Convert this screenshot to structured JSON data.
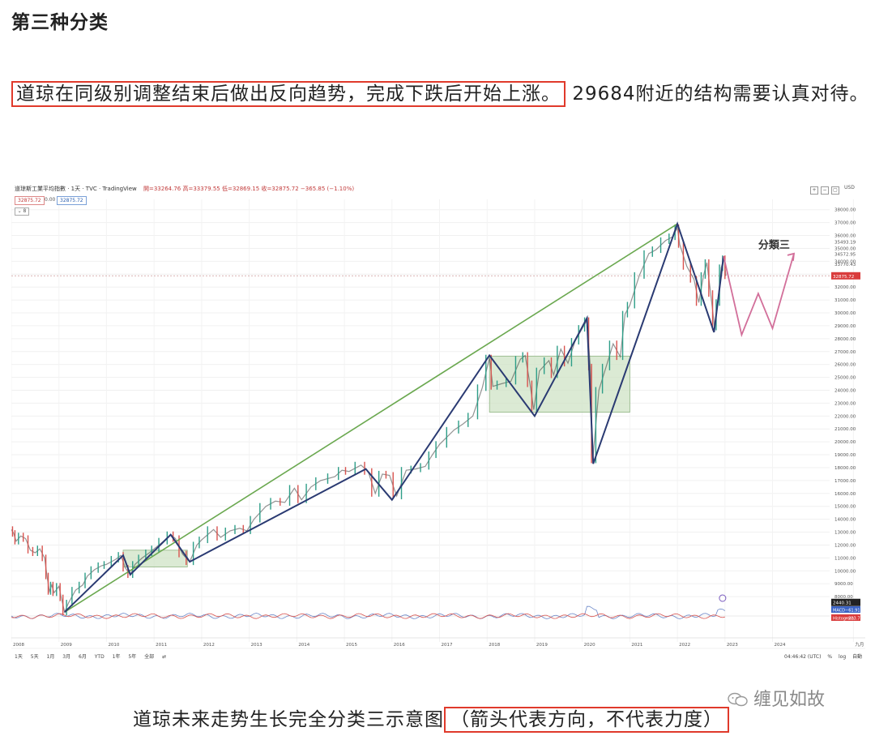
{
  "heading": "第三种分类",
  "paragraph": {
    "highlighted": "道琼在同级别调整结束后做出反向趋势，完成下跌后开始上涨。",
    "rest": "29684附近的结构需要认真对待。"
  },
  "tv": {
    "title": "道琼斯工業平均指數 · 1天 · TVC · TradingView",
    "ohlc": "開=33264.76 高=33379.55 低=32869.15 收=32875.72 −365.85 (−1.10%)",
    "box1": "32875.72",
    "box2": "0.00",
    "box3": "32875.72",
    "currency": "USD",
    "toggle": "⌄ 8",
    "win_buttons": [
      "+",
      "−",
      "▢"
    ]
  },
  "colors": {
    "candle_up": "#2e9e88",
    "candle_down": "#d9534f",
    "structure_line": "#2a3a72",
    "trend_line": "#6aa84f",
    "projection": "#d26f9a",
    "box_fill": "#cfe3c6",
    "box_stroke": "#8fb482",
    "label_bg": "#d93c3c"
  },
  "chart_data": {
    "type": "line",
    "title": "",
    "annotation": "分類三",
    "price_labels": {
      "current": "32875.72",
      "values": [
        "34572.95",
        "33770.43",
        "35493.19"
      ],
      "indicator": "2440.31",
      "macd": "−61.91",
      "histogram": "−323.77",
      "macd_tag": "MACD",
      "histogram_tag": "Histogram"
    },
    "y_ticks": [
      8000,
      9000,
      10000,
      11000,
      12000,
      13000,
      14000,
      15000,
      16000,
      17000,
      18000,
      19000,
      20000,
      21000,
      22000,
      23000,
      24000,
      25000,
      26000,
      27000,
      28000,
      29000,
      30000,
      31000,
      32000,
      33000,
      34000,
      35000,
      36000,
      37000,
      38000
    ],
    "x_ticks": [
      "2008",
      "2009",
      "2010",
      "2011",
      "2012",
      "2013",
      "2014",
      "2015",
      "2016",
      "2017",
      "2018",
      "2019",
      "2020",
      "2021",
      "2022",
      "2023",
      "2024",
      "九月"
    ],
    "ylim": [
      7000,
      38800
    ],
    "price_series": [
      [
        2008.0,
        13200
      ],
      [
        2008.05,
        12900
      ],
      [
        2008.1,
        12300
      ],
      [
        2008.2,
        12700
      ],
      [
        2008.3,
        12500
      ],
      [
        2008.4,
        11600
      ],
      [
        2008.5,
        11400
      ],
      [
        2008.6,
        11700
      ],
      [
        2008.7,
        11000
      ],
      [
        2008.75,
        9600
      ],
      [
        2008.8,
        8400
      ],
      [
        2008.85,
        8900
      ],
      [
        2008.9,
        8300
      ],
      [
        2009.0,
        8800
      ],
      [
        2009.05,
        7900
      ],
      [
        2009.12,
        6800
      ],
      [
        2009.2,
        7500
      ],
      [
        2009.35,
        8500
      ],
      [
        2009.5,
        8900
      ],
      [
        2009.6,
        9600
      ],
      [
        2009.75,
        10100
      ],
      [
        2009.9,
        10400
      ],
      [
        2010.0,
        10500
      ],
      [
        2010.2,
        10900
      ],
      [
        2010.3,
        11200
      ],
      [
        2010.4,
        10200
      ],
      [
        2010.5,
        9700
      ],
      [
        2010.6,
        10500
      ],
      [
        2010.75,
        11000
      ],
      [
        2010.9,
        11400
      ],
      [
        2011.0,
        11700
      ],
      [
        2011.2,
        12300
      ],
      [
        2011.35,
        12800
      ],
      [
        2011.45,
        12500
      ],
      [
        2011.6,
        11300
      ],
      [
        2011.75,
        10700
      ],
      [
        2011.9,
        12000
      ],
      [
        2012.0,
        12400
      ],
      [
        2012.25,
        13200
      ],
      [
        2012.4,
        12600
      ],
      [
        2012.6,
        13100
      ],
      [
        2012.8,
        13300
      ],
      [
        2012.95,
        13100
      ],
      [
        2013.1,
        14000
      ],
      [
        2013.35,
        15000
      ],
      [
        2013.55,
        15400
      ],
      [
        2013.75,
        15300
      ],
      [
        2013.95,
        16400
      ],
      [
        2014.1,
        15500
      ],
      [
        2014.3,
        16500
      ],
      [
        2014.5,
        17000
      ],
      [
        2014.8,
        17300
      ],
      [
        2014.95,
        17800
      ],
      [
        2015.1,
        17700
      ],
      [
        2015.35,
        18200
      ],
      [
        2015.5,
        17700
      ],
      [
        2015.65,
        16000
      ],
      [
        2015.8,
        17500
      ],
      [
        2015.95,
        17400
      ],
      [
        2016.1,
        15800
      ],
      [
        2016.3,
        17800
      ],
      [
        2016.5,
        17900
      ],
      [
        2016.7,
        18100
      ],
      [
        2016.85,
        19000
      ],
      [
        2017.0,
        19800
      ],
      [
        2017.3,
        20900
      ],
      [
        2017.5,
        21400
      ],
      [
        2017.7,
        22000
      ],
      [
        2017.9,
        24200
      ],
      [
        2018.05,
        26500
      ],
      [
        2018.12,
        24300
      ],
      [
        2018.3,
        24500
      ],
      [
        2018.5,
        24700
      ],
      [
        2018.7,
        26400
      ],
      [
        2018.8,
        26700
      ],
      [
        2018.9,
        24500
      ],
      [
        2018.98,
        22500
      ],
      [
        2019.1,
        25500
      ],
      [
        2019.3,
        26300
      ],
      [
        2019.4,
        25200
      ],
      [
        2019.55,
        27200
      ],
      [
        2019.7,
        26100
      ],
      [
        2019.85,
        27800
      ],
      [
        2020.0,
        28800
      ],
      [
        2020.1,
        29400
      ],
      [
        2020.17,
        25800
      ],
      [
        2020.22,
        18600
      ],
      [
        2020.35,
        24000
      ],
      [
        2020.5,
        25800
      ],
      [
        2020.65,
        27600
      ],
      [
        2020.8,
        26600
      ],
      [
        2020.9,
        29900
      ],
      [
        2021.0,
        30600
      ],
      [
        2021.2,
        32900
      ],
      [
        2021.4,
        34600
      ],
      [
        2021.55,
        34900
      ],
      [
        2021.75,
        35600
      ],
      [
        2021.9,
        35900
      ],
      [
        2022.0,
        36600
      ],
      [
        2022.05,
        35300
      ],
      [
        2022.2,
        33600
      ],
      [
        2022.35,
        32600
      ],
      [
        2022.45,
        30800
      ],
      [
        2022.55,
        32900
      ],
      [
        2022.62,
        33900
      ],
      [
        2022.7,
        31500
      ],
      [
        2022.78,
        28900
      ],
      [
        2022.85,
        30800
      ],
      [
        2022.92,
        33500
      ],
      [
        2022.98,
        34200
      ],
      [
        2023.02,
        32875
      ]
    ],
    "structure_line": [
      [
        2009.12,
        6800
      ],
      [
        2010.35,
        11200
      ],
      [
        2010.5,
        9700
      ],
      [
        2011.35,
        12800
      ],
      [
        2011.75,
        10700
      ],
      [
        2015.45,
        17900
      ],
      [
        2016.0,
        15500
      ],
      [
        2018.05,
        26700
      ],
      [
        2019.0,
        22000
      ],
      [
        2020.1,
        29600
      ],
      [
        2020.23,
        18300
      ],
      [
        2022.0,
        36900
      ],
      [
        2022.77,
        28500
      ],
      [
        2022.97,
        34400
      ]
    ],
    "trend_line": [
      [
        2009.12,
        6800
      ],
      [
        2022.0,
        36900
      ]
    ],
    "projection": [
      [
        2022.97,
        34400
      ],
      [
        2023.35,
        28300
      ],
      [
        2023.7,
        31500
      ],
      [
        2024.0,
        28800
      ],
      [
        2024.45,
        34600
      ]
    ],
    "consolidation_boxes": [
      {
        "x": [
          2010.35,
          2011.7
        ],
        "y": [
          10300,
          11600
        ]
      },
      {
        "x": [
          2018.05,
          2021.0
        ],
        "y": [
          22300,
          26650
        ]
      }
    ]
  },
  "toolbar": {
    "ranges": [
      "1天",
      "5天",
      "1月",
      "3月",
      "6月",
      "YTD",
      "1年",
      "5年",
      "全部"
    ],
    "time": "04:46:42 (UTC)",
    "pct": "%",
    "log": "log",
    "auto": "自動"
  },
  "caption": {
    "text": "道琼未来走势生长完全分类三示意图",
    "highlighted": "（箭头代表方向，不代表力度）"
  },
  "watermark": "缠见如故"
}
